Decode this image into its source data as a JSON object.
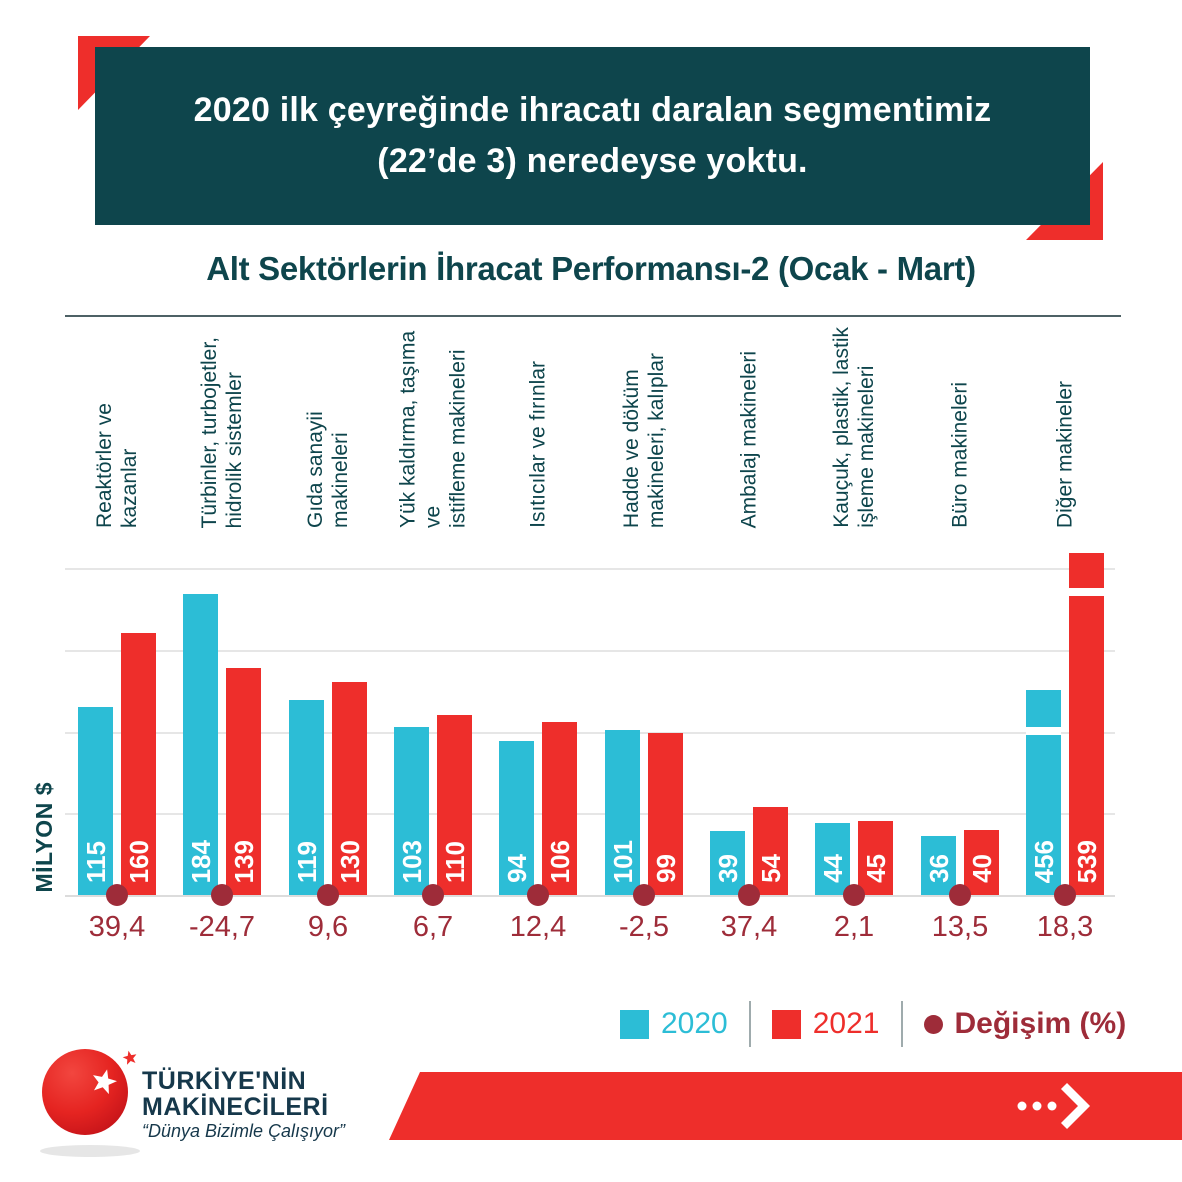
{
  "banner": {
    "text_line1": "2020 ilk çeyreğinde ihracatı daralan segmentimiz",
    "text_line2": "(22’de 3) neredeyse yoktu."
  },
  "chart_data": {
    "type": "bar",
    "title": "Alt Sektörlerin İhracat Performansı-2 (Ocak - Mart)",
    "ylabel": "MİLYON $",
    "ylim": [
      0,
      200
    ],
    "gridline_step": 50,
    "grid": true,
    "legend_position": "bottom",
    "broken_axis_category_index": 9,
    "categories": [
      "Reaktörler ve kazanlar",
      "Türbinler, turbojetler,\nhidrolik sistemler",
      "Gıda sanayii makineleri",
      "Yük kaldırma, taşıma ve\nistifleme makineleri",
      "Isıtıcılar ve fırınlar",
      "Hadde ve döküm\nmakineleri, kalıplar",
      "Ambalaj makineleri",
      "Kauçuk, plastik, lastik\nişleme makineleri",
      "Büro makineleri",
      "Diğer makineler"
    ],
    "series": [
      {
        "name": "2020",
        "color": "#2cbdd6",
        "values": [
          115,
          184,
          119,
          103,
          94,
          101,
          39,
          44,
          36,
          456
        ]
      },
      {
        "name": "2021",
        "color": "#ee2e2b",
        "values": [
          160,
          139,
          130,
          110,
          106,
          99,
          54,
          45,
          40,
          539
        ]
      }
    ],
    "change_percent": {
      "name": "Değişim (%)",
      "color": "#9e2c39",
      "values": [
        "39,4",
        "-24,7",
        "9,6",
        "6,7",
        "12,4",
        "-2,5",
        "37,4",
        "2,1",
        "13,5",
        "18,3"
      ]
    }
  },
  "legend": {
    "items": [
      {
        "label": "2020",
        "swatch": "square",
        "color": "#2cbdd6",
        "text_color": "#2cbdd6",
        "bold": false
      },
      {
        "label": "2021",
        "swatch": "square",
        "color": "#ee2e2b",
        "text_color": "#ee2e2b",
        "bold": false
      },
      {
        "label": "Değişim (%)",
        "swatch": "circle",
        "color": "#9e2c39",
        "text_color": "#9e2c39",
        "bold": true
      }
    ]
  },
  "footer": {
    "brand_line1": "TÜRKİYE'NİN",
    "brand_line2": "MAKİNECİLERİ",
    "tagline": "“Dünya Bizimle Çalışıyor”"
  },
  "colors": {
    "teal": "#0e454c",
    "cyan": "#2cbdd6",
    "red": "#ee2e2b",
    "maroon": "#9e2c39",
    "brand_navy": "#16384b"
  }
}
